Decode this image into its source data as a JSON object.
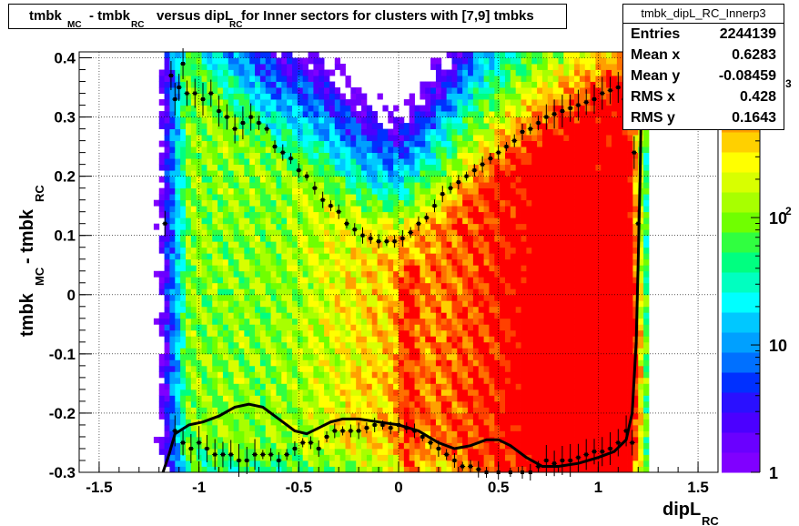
{
  "chart_data": {
    "type": "heatmap",
    "title": {
      "parts": [
        "tmbk",
        "MC",
        "- tmbk",
        "RC",
        "versus dipL",
        "RC",
        "for Inner sectors for clusters with [7,9] tmbks"
      ]
    },
    "xlabel": {
      "main": "dipL",
      "sub": "RC"
    },
    "ylabel": {
      "main1": "tmbk",
      "sub1": "MC",
      "main2": "- tmbk",
      "sub2": "RC"
    },
    "xlim": [
      -1.6,
      1.6
    ],
    "ylim": [
      -0.3,
      0.41
    ],
    "x_ticks": [
      {
        "v": -1.5,
        "label": "-1.5"
      },
      {
        "v": -1,
        "label": "-1"
      },
      {
        "v": -0.5,
        "label": "-0.5"
      },
      {
        "v": 0,
        "label": "0"
      },
      {
        "v": 0.5,
        "label": "0.5"
      },
      {
        "v": 1,
        "label": "1"
      },
      {
        "v": 1.5,
        "label": "1.5"
      }
    ],
    "y_ticks": [
      {
        "v": -0.3,
        "label": "-0.3"
      },
      {
        "v": -0.2,
        "label": "-0.2"
      },
      {
        "v": -0.1,
        "label": "-0.1"
      },
      {
        "v": 0,
        "label": "0"
      },
      {
        "v": 0.1,
        "label": "0.1"
      },
      {
        "v": 0.2,
        "label": "0.2"
      },
      {
        "v": 0.3,
        "label": "0.3"
      },
      {
        "v": 0.4,
        "label": "0.4"
      }
    ],
    "z_scale": "log",
    "z_range": [
      1,
      2000
    ],
    "z_ticks": [
      {
        "v": 1,
        "label": "1"
      },
      {
        "v": 10,
        "label": "10"
      },
      {
        "v": 100,
        "label": "10",
        "exp": "2"
      },
      {
        "v": 1000,
        "label": "",
        "exp": "3"
      }
    ],
    "grid": true,
    "profile_points": [
      [
        -1.17,
        0.12
      ],
      [
        -1.14,
        0.37
      ],
      [
        -1.12,
        0.33
      ],
      [
        -1.1,
        0.35
      ],
      [
        -1.08,
        0.39
      ],
      [
        -1.06,
        0.34
      ],
      [
        -1.02,
        0.34
      ],
      [
        -0.98,
        0.33
      ],
      [
        -0.94,
        0.34
      ],
      [
        -0.9,
        0.31
      ],
      [
        -0.86,
        0.3
      ],
      [
        -0.82,
        0.28
      ],
      [
        -0.78,
        0.29
      ],
      [
        -0.74,
        0.3
      ],
      [
        -0.7,
        0.29
      ],
      [
        -0.66,
        0.28
      ],
      [
        -0.62,
        0.25
      ],
      [
        -0.58,
        0.24
      ],
      [
        -0.54,
        0.23
      ],
      [
        -0.5,
        0.21
      ],
      [
        -0.46,
        0.2
      ],
      [
        -0.42,
        0.18
      ],
      [
        -0.38,
        0.16
      ],
      [
        -0.34,
        0.15
      ],
      [
        -0.3,
        0.14
      ],
      [
        -0.26,
        0.12
      ],
      [
        -0.22,
        0.11
      ],
      [
        -0.18,
        0.1
      ],
      [
        -0.14,
        0.095
      ],
      [
        -0.1,
        0.09
      ],
      [
        -0.06,
        0.09
      ],
      [
        -0.02,
        0.09
      ],
      [
        0.02,
        0.095
      ],
      [
        0.06,
        0.105
      ],
      [
        0.1,
        0.12
      ],
      [
        0.14,
        0.13
      ],
      [
        0.18,
        0.15
      ],
      [
        0.22,
        0.17
      ],
      [
        0.26,
        0.18
      ],
      [
        0.3,
        0.19
      ],
      [
        0.34,
        0.2
      ],
      [
        0.38,
        0.21
      ],
      [
        0.42,
        0.22
      ],
      [
        0.46,
        0.23
      ],
      [
        0.5,
        0.24
      ],
      [
        0.54,
        0.25
      ],
      [
        0.58,
        0.26
      ],
      [
        0.62,
        0.275
      ],
      [
        0.66,
        0.28
      ],
      [
        0.7,
        0.29
      ],
      [
        0.74,
        0.3
      ],
      [
        0.78,
        0.305
      ],
      [
        0.82,
        0.31
      ],
      [
        0.86,
        0.315
      ],
      [
        0.9,
        0.32
      ],
      [
        0.94,
        0.325
      ],
      [
        0.98,
        0.33
      ],
      [
        1.02,
        0.34
      ],
      [
        1.06,
        0.345
      ],
      [
        1.1,
        0.35
      ],
      [
        1.13,
        0.33
      ],
      [
        1.15,
        0.32
      ],
      [
        1.18,
        0.24
      ],
      [
        1.2,
        0.12
      ],
      [
        -1.12,
        -0.23
      ],
      [
        -1.08,
        -0.25
      ],
      [
        -1.04,
        -0.26
      ],
      [
        -1.0,
        -0.25
      ],
      [
        -0.96,
        -0.26
      ],
      [
        -0.92,
        -0.27
      ],
      [
        -0.88,
        -0.27
      ],
      [
        -0.84,
        -0.27
      ],
      [
        -0.8,
        -0.28
      ],
      [
        -0.76,
        -0.28
      ],
      [
        -0.72,
        -0.27
      ],
      [
        -0.68,
        -0.27
      ],
      [
        -0.64,
        -0.27
      ],
      [
        -0.6,
        -0.28
      ],
      [
        -0.56,
        -0.27
      ],
      [
        -0.52,
        -0.26
      ],
      [
        -0.48,
        -0.25
      ],
      [
        -0.44,
        -0.25
      ],
      [
        -0.4,
        -0.26
      ],
      [
        -0.36,
        -0.24
      ],
      [
        -0.32,
        -0.23
      ],
      [
        -0.28,
        -0.23
      ],
      [
        -0.24,
        -0.23
      ],
      [
        -0.2,
        -0.23
      ],
      [
        -0.16,
        -0.225
      ],
      [
        -0.12,
        -0.22
      ],
      [
        -0.08,
        -0.22
      ],
      [
        -0.04,
        -0.225
      ],
      [
        0.0,
        -0.22
      ],
      [
        0.04,
        -0.225
      ],
      [
        0.08,
        -0.23
      ],
      [
        0.12,
        -0.24
      ],
      [
        0.16,
        -0.25
      ],
      [
        0.2,
        -0.26
      ],
      [
        0.24,
        -0.27
      ],
      [
        0.28,
        -0.28
      ],
      [
        0.32,
        -0.29
      ],
      [
        0.36,
        -0.29
      ],
      [
        0.4,
        -0.295
      ],
      [
        0.44,
        -0.3
      ],
      [
        0.5,
        -0.3
      ],
      [
        0.56,
        -0.3
      ],
      [
        0.62,
        -0.3
      ],
      [
        0.66,
        -0.3
      ],
      [
        0.7,
        -0.29
      ],
      [
        0.74,
        -0.28
      ],
      [
        0.78,
        -0.285
      ],
      [
        0.82,
        -0.28
      ],
      [
        0.86,
        -0.28
      ],
      [
        0.9,
        -0.275
      ],
      [
        0.94,
        -0.27
      ],
      [
        0.98,
        -0.265
      ],
      [
        1.02,
        -0.265
      ],
      [
        1.06,
        -0.26
      ],
      [
        1.1,
        -0.25
      ],
      [
        1.14,
        -0.23
      ],
      [
        1.17,
        -0.25
      ]
    ],
    "fit_curve": [
      [
        -1.18,
        -0.3
      ],
      [
        -1.15,
        -0.27
      ],
      [
        -1.12,
        -0.235
      ],
      [
        -1.05,
        -0.22
      ],
      [
        -0.98,
        -0.215
      ],
      [
        -0.9,
        -0.205
      ],
      [
        -0.82,
        -0.19
      ],
      [
        -0.75,
        -0.185
      ],
      [
        -0.68,
        -0.19
      ],
      [
        -0.6,
        -0.21
      ],
      [
        -0.52,
        -0.23
      ],
      [
        -0.46,
        -0.235
      ],
      [
        -0.4,
        -0.225
      ],
      [
        -0.34,
        -0.215
      ],
      [
        -0.28,
        -0.21
      ],
      [
        -0.2,
        -0.21
      ],
      [
        -0.1,
        -0.215
      ],
      [
        0.0,
        -0.22
      ],
      [
        0.1,
        -0.23
      ],
      [
        0.2,
        -0.25
      ],
      [
        0.28,
        -0.26
      ],
      [
        0.36,
        -0.255
      ],
      [
        0.44,
        -0.245
      ],
      [
        0.5,
        -0.245
      ],
      [
        0.56,
        -0.255
      ],
      [
        0.64,
        -0.275
      ],
      [
        0.72,
        -0.29
      ],
      [
        0.8,
        -0.29
      ],
      [
        0.9,
        -0.285
      ],
      [
        1.0,
        -0.275
      ],
      [
        1.08,
        -0.265
      ],
      [
        1.14,
        -0.245
      ],
      [
        1.17,
        -0.2
      ],
      [
        1.19,
        -0.08
      ],
      [
        1.2,
        0.05
      ],
      [
        1.21,
        0.2
      ],
      [
        1.22,
        0.41
      ]
    ]
  },
  "stats": {
    "name": "tmbk_dipL_RC_Innerp3",
    "rows": [
      {
        "key": "Entries",
        "value": "2244139"
      },
      {
        "key": "Mean x",
        "value": "0.6283"
      },
      {
        "key": "Mean y",
        "value": "-0.08459"
      },
      {
        "key": "RMS x",
        "value": "0.428"
      },
      {
        "key": "RMS y",
        "value": "0.1643"
      }
    ]
  },
  "palette": [
    "#8000ff",
    "#6a00ff",
    "#4b00ff",
    "#2a10ff",
    "#0030ff",
    "#0070ff",
    "#00a0ff",
    "#00c8ff",
    "#00ffff",
    "#00ffc0",
    "#00ff80",
    "#30ff40",
    "#70ff00",
    "#a8ff00",
    "#d8ff00",
    "#ffff00",
    "#ffd000",
    "#ffa000",
    "#ff7000",
    "#ff4000",
    "#ff0000"
  ]
}
